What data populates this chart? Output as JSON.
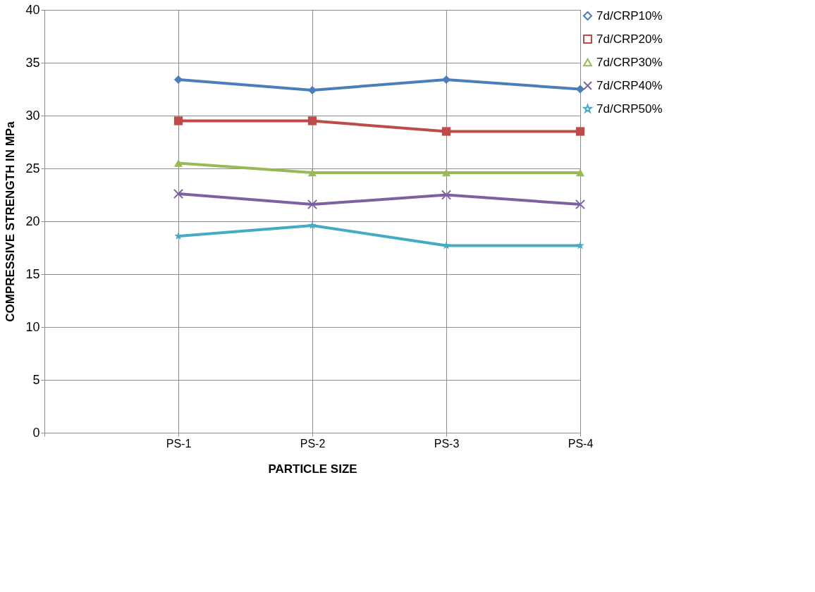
{
  "chart_data": {
    "type": "line",
    "xlabel": "PARTICLE SIZE",
    "ylabel": "COMPRESSIVE STRENGTH IN MPa",
    "categories": [
      null,
      "PS-1",
      "PS-2",
      "PS-3",
      "PS-4"
    ],
    "series": [
      {
        "name": "7d/CRP10%",
        "color": "#4a7ebb",
        "marker": "diamond",
        "values": [
          null,
          33.4,
          32.4,
          33.4,
          32.5
        ]
      },
      {
        "name": "7d/CRP20%",
        "color": "#be4b48",
        "marker": "square",
        "values": [
          null,
          29.5,
          29.5,
          28.5,
          28.5
        ]
      },
      {
        "name": "7d/CRP30%",
        "color": "#98b954",
        "marker": "triangle",
        "values": [
          null,
          25.5,
          24.6,
          24.6,
          24.6
        ]
      },
      {
        "name": "7d/CRP40%",
        "color": "#7d60a0",
        "marker": "cross",
        "values": [
          null,
          22.6,
          21.6,
          22.5,
          21.6
        ]
      },
      {
        "name": "7d/CRP50%",
        "color": "#46aac5",
        "marker": "star",
        "values": [
          null,
          18.6,
          19.6,
          17.7,
          17.7
        ]
      }
    ],
    "ylim": [
      0,
      40
    ],
    "yticks": [
      0,
      5,
      10,
      15,
      20,
      25,
      30,
      35,
      40
    ],
    "grid": true,
    "legend": "right"
  }
}
